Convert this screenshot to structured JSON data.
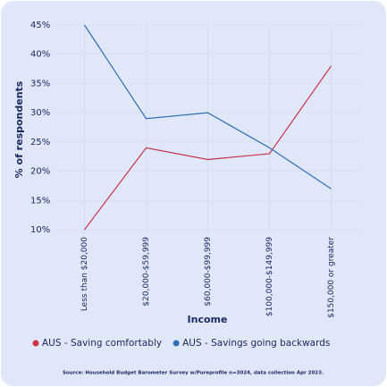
{
  "chart_data": {
    "type": "line",
    "y_label": "% of respondents",
    "x_label": "Income",
    "source": "Source: Household Budget Barometer Survey w/Pureprofile n=3024, data collection Apr 2023.",
    "categories": [
      "Less than $20,000",
      "$20,000-$59,999",
      "$60,000-$99,999",
      "$100,000-$149,999",
      "$150,000 or greater"
    ],
    "series": [
      {
        "name": "AUS - Saving comfortably",
        "color": "#c8334a",
        "values": [
          10,
          24,
          22,
          23,
          38
        ]
      },
      {
        "name": "AUS - Savings going backwards",
        "color": "#2f6db5",
        "values": [
          45,
          29,
          30,
          24,
          17
        ]
      }
    ],
    "ylim": [
      10,
      45
    ],
    "yticks": [
      {
        "value": 10,
        "label": "10%"
      },
      {
        "value": 15,
        "label": "15%"
      },
      {
        "value": 20,
        "label": "20%"
      },
      {
        "value": 25,
        "label": "25%"
      },
      {
        "value": 30,
        "label": "30%"
      },
      {
        "value": 35,
        "label": "35%"
      },
      {
        "value": 40,
        "label": "40%"
      },
      {
        "value": 45,
        "label": "45%"
      }
    ],
    "grid": true,
    "legend": "bottom"
  }
}
